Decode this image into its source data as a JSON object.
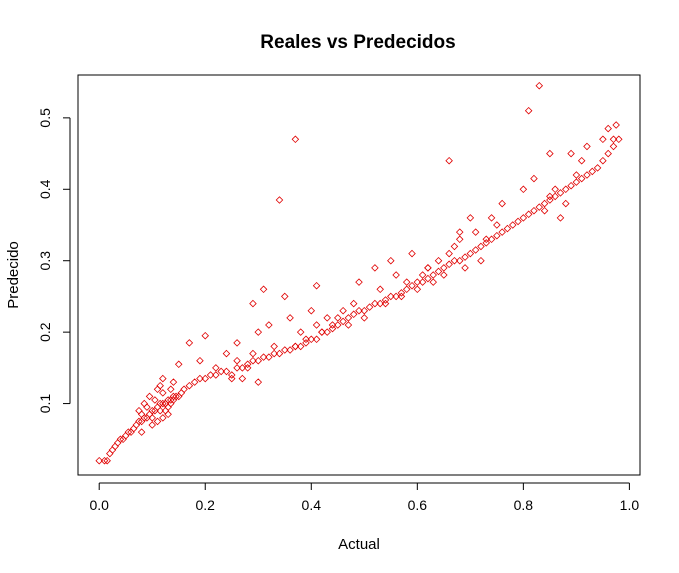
{
  "chart_data": {
    "type": "scatter",
    "title": "Reales vs Predecidos",
    "xlabel": "Actual",
    "ylabel": "Predecido",
    "xlim": [
      -0.04,
      1.02
    ],
    "ylim": [
      0.0,
      0.56
    ],
    "xticks": [
      0.0,
      0.2,
      0.4,
      0.6,
      0.8,
      1.0
    ],
    "xtick_labels": [
      "0.0",
      "0.2",
      "0.4",
      "0.6",
      "0.8",
      "1.0"
    ],
    "yticks": [
      0.1,
      0.2,
      0.3,
      0.4,
      0.5
    ],
    "ytick_labels": [
      "0.1",
      "0.2",
      "0.3",
      "0.4",
      "0.5"
    ],
    "grid": false,
    "marker": "open-diamond",
    "point_color": "#e00000",
    "x": [
      0.0,
      0.01,
      0.015,
      0.02,
      0.025,
      0.03,
      0.035,
      0.04,
      0.045,
      0.05,
      0.055,
      0.06,
      0.065,
      0.07,
      0.075,
      0.08,
      0.085,
      0.09,
      0.095,
      0.1,
      0.105,
      0.11,
      0.115,
      0.12,
      0.125,
      0.13,
      0.135,
      0.14,
      0.145,
      0.15,
      0.155,
      0.16,
      0.17,
      0.18,
      0.19,
      0.2,
      0.21,
      0.22,
      0.23,
      0.24,
      0.25,
      0.26,
      0.27,
      0.28,
      0.29,
      0.3,
      0.31,
      0.32,
      0.33,
      0.34,
      0.35,
      0.36,
      0.37,
      0.38,
      0.39,
      0.4,
      0.41,
      0.42,
      0.43,
      0.44,
      0.45,
      0.46,
      0.47,
      0.48,
      0.49,
      0.5,
      0.51,
      0.52,
      0.53,
      0.54,
      0.55,
      0.56,
      0.57,
      0.58,
      0.59,
      0.6,
      0.61,
      0.62,
      0.63,
      0.64,
      0.65,
      0.66,
      0.67,
      0.68,
      0.69,
      0.7,
      0.71,
      0.72,
      0.73,
      0.74,
      0.75,
      0.76,
      0.77,
      0.78,
      0.79,
      0.8,
      0.81,
      0.82,
      0.83,
      0.84,
      0.85,
      0.86,
      0.87,
      0.88,
      0.89,
      0.9,
      0.91,
      0.92,
      0.93,
      0.94,
      0.95,
      0.96,
      0.97,
      0.98,
      0.075,
      0.08,
      0.085,
      0.09,
      0.095,
      0.1,
      0.105,
      0.11,
      0.115,
      0.12,
      0.125,
      0.13,
      0.135,
      0.14,
      0.1,
      0.11,
      0.12,
      0.13,
      0.14,
      0.115,
      0.125,
      0.135,
      0.27,
      0.28,
      0.29,
      0.3,
      0.26,
      0.25,
      0.37,
      0.38,
      0.39,
      0.41,
      0.42,
      0.43,
      0.6,
      0.61,
      0.62,
      0.63,
      0.64,
      0.65,
      0.66,
      0.67,
      0.68,
      0.69,
      0.71,
      0.72,
      0.73,
      0.74,
      0.75,
      0.84,
      0.85,
      0.86,
      0.87,
      0.88,
      0.89,
      0.9,
      0.91,
      0.92,
      0.17,
      0.19,
      0.2,
      0.29,
      0.3,
      0.31,
      0.32,
      0.35,
      0.36,
      0.34,
      0.37,
      0.33,
      0.41,
      0.4,
      0.49,
      0.52,
      0.55,
      0.58,
      0.59,
      0.66,
      0.62,
      0.68,
      0.7,
      0.76,
      0.8,
      0.82,
      0.83,
      0.81,
      0.85,
      0.95,
      0.96,
      0.975,
      0.97,
      0.08,
      0.12,
      0.15,
      0.22,
      0.24,
      0.26,
      0.44,
      0.45,
      0.46,
      0.47,
      0.48,
      0.5,
      0.53,
      0.54,
      0.56,
      0.57
    ],
    "y": [
      0.02,
      0.02,
      0.02,
      0.03,
      0.035,
      0.04,
      0.045,
      0.05,
      0.05,
      0.055,
      0.06,
      0.06,
      0.065,
      0.07,
      0.075,
      0.075,
      0.08,
      0.08,
      0.085,
      0.09,
      0.09,
      0.095,
      0.1,
      0.1,
      0.1,
      0.105,
      0.105,
      0.11,
      0.11,
      0.11,
      0.115,
      0.12,
      0.125,
      0.13,
      0.135,
      0.135,
      0.14,
      0.14,
      0.145,
      0.145,
      0.14,
      0.15,
      0.15,
      0.155,
      0.16,
      0.16,
      0.165,
      0.165,
      0.17,
      0.17,
      0.175,
      0.175,
      0.18,
      0.18,
      0.185,
      0.19,
      0.19,
      0.2,
      0.2,
      0.205,
      0.21,
      0.215,
      0.22,
      0.225,
      0.23,
      0.23,
      0.235,
      0.24,
      0.24,
      0.245,
      0.25,
      0.25,
      0.255,
      0.26,
      0.265,
      0.27,
      0.27,
      0.275,
      0.28,
      0.285,
      0.29,
      0.295,
      0.3,
      0.3,
      0.305,
      0.31,
      0.315,
      0.32,
      0.325,
      0.33,
      0.335,
      0.34,
      0.345,
      0.35,
      0.355,
      0.36,
      0.365,
      0.37,
      0.375,
      0.38,
      0.385,
      0.39,
      0.395,
      0.4,
      0.405,
      0.41,
      0.415,
      0.42,
      0.425,
      0.43,
      0.44,
      0.45,
      0.46,
      0.47,
      0.09,
      0.085,
      0.1,
      0.095,
      0.11,
      0.08,
      0.105,
      0.12,
      0.09,
      0.115,
      0.1,
      0.095,
      0.12,
      0.105,
      0.07,
      0.075,
      0.08,
      0.085,
      0.13,
      0.125,
      0.09,
      0.1,
      0.135,
      0.15,
      0.17,
      0.13,
      0.16,
      0.135,
      0.18,
      0.2,
      0.19,
      0.21,
      0.2,
      0.22,
      0.26,
      0.28,
      0.29,
      0.27,
      0.3,
      0.28,
      0.31,
      0.32,
      0.33,
      0.29,
      0.34,
      0.3,
      0.33,
      0.36,
      0.35,
      0.37,
      0.39,
      0.4,
      0.36,
      0.38,
      0.45,
      0.42,
      0.44,
      0.46,
      0.185,
      0.16,
      0.195,
      0.24,
      0.2,
      0.26,
      0.21,
      0.25,
      0.22,
      0.385,
      0.47,
      0.18,
      0.265,
      0.23,
      0.27,
      0.29,
      0.3,
      0.27,
      0.31,
      0.44,
      0.29,
      0.34,
      0.36,
      0.38,
      0.4,
      0.415,
      0.545,
      0.51,
      0.45,
      0.47,
      0.485,
      0.49,
      0.47,
      0.06,
      0.135,
      0.155,
      0.15,
      0.17,
      0.185,
      0.21,
      0.22,
      0.23,
      0.21,
      0.24,
      0.22,
      0.26,
      0.24,
      0.28,
      0.25
    ]
  }
}
